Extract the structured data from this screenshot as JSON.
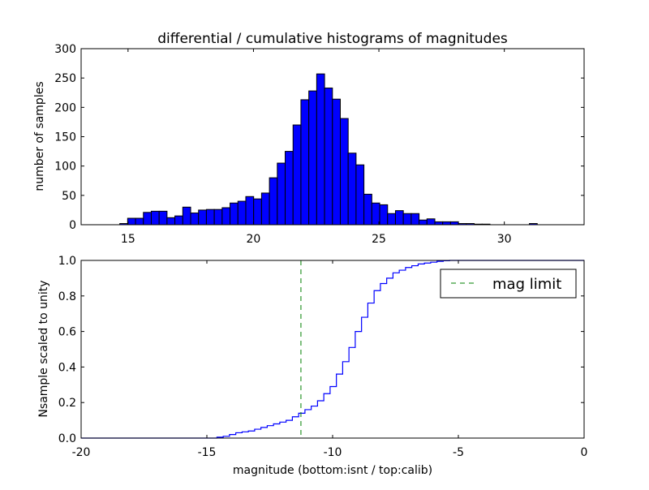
{
  "chart_data": [
    {
      "type": "bar",
      "title": "differential / cumulative histograms of magnitudes",
      "xlabel": "",
      "ylabel": "number of samples",
      "xlim": [
        13.13,
        33.18
      ],
      "ylim": [
        0,
        300
      ],
      "xticks": [
        15,
        20,
        25,
        30
      ],
      "yticks": [
        0,
        50,
        100,
        150,
        200,
        250,
        300
      ],
      "bin_start": 14.67,
      "bin_width": 0.314,
      "values": [
        2,
        11,
        11,
        21,
        23,
        23,
        12,
        15,
        30,
        20,
        25,
        26,
        26,
        29,
        37,
        40,
        48,
        44,
        54,
        80,
        105,
        125,
        170,
        213,
        228,
        257,
        233,
        214,
        181,
        122,
        102,
        52,
        37,
        34,
        19,
        24,
        19,
        19,
        8,
        10,
        5,
        5,
        5,
        2,
        2,
        1,
        1,
        0,
        0,
        0,
        0,
        0,
        2
      ],
      "color": "#0000ff"
    },
    {
      "type": "line",
      "step": true,
      "xlabel": "magnitude (bottom:isnt / top:calib)",
      "ylabel": "Nsample scaled to unity",
      "xlim": [
        -20,
        0
      ],
      "ylim": [
        0,
        1
      ],
      "xticks": [
        -20,
        -15,
        -10,
        -5,
        0
      ],
      "yticks": [
        "0.0",
        "0.2",
        "0.4",
        "0.6",
        "0.8",
        "1.0"
      ],
      "step_start": -14.6,
      "step_width": 0.25,
      "values": [
        0.005,
        0.01,
        0.02,
        0.03,
        0.035,
        0.04,
        0.05,
        0.06,
        0.07,
        0.08,
        0.09,
        0.1,
        0.12,
        0.14,
        0.16,
        0.18,
        0.21,
        0.25,
        0.29,
        0.36,
        0.43,
        0.51,
        0.6,
        0.68,
        0.76,
        0.83,
        0.87,
        0.9,
        0.93,
        0.945,
        0.96,
        0.97,
        0.98,
        0.985,
        0.99,
        0.995,
        0.998,
        1.0
      ],
      "color": "#0000ff",
      "mag_limit": -11.26,
      "mag_limit_color": "#008000",
      "legend": {
        "label": "mag limit",
        "position": "top-right"
      }
    }
  ]
}
